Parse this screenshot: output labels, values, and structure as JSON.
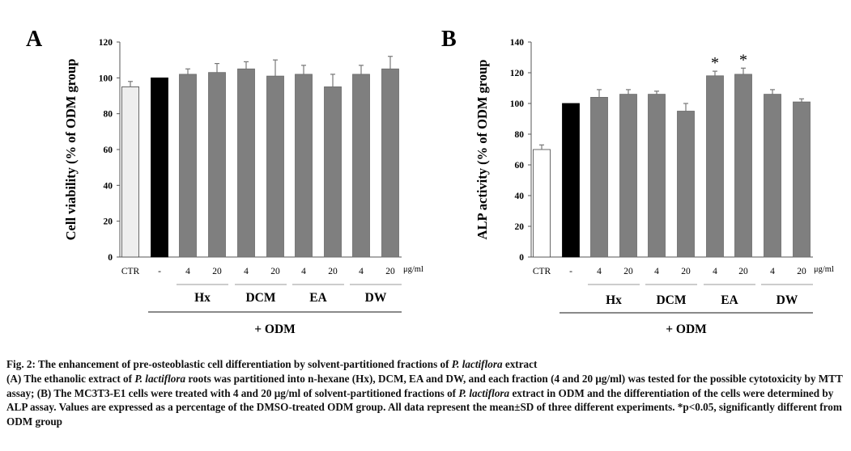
{
  "chart_data": [
    {
      "type": "bar",
      "panel_label": "A",
      "ylabel": "Cell viability (% of ODM group",
      "ylim": [
        0,
        120
      ],
      "yticks": [
        "0",
        "20",
        "40",
        "60",
        "80",
        "100",
        "120"
      ],
      "categories": [
        "CTR",
        "-",
        "4",
        "20",
        "4",
        "20",
        "4",
        "20",
        "4",
        "20"
      ],
      "values": [
        95,
        100,
        102,
        103,
        105,
        101,
        102,
        95,
        102,
        105
      ],
      "errors": [
        3,
        0,
        3,
        5,
        4,
        9,
        5,
        7,
        5,
        7
      ],
      "bar_colors": [
        "#eeeeee",
        "#000000",
        "#7f7f7f",
        "#7f7f7f",
        "#7f7f7f",
        "#7f7f7f",
        "#7f7f7f",
        "#7f7f7f",
        "#7f7f7f",
        "#7f7f7f"
      ],
      "unit_label": "μg/ml",
      "groups": [
        "Hx",
        "DCM",
        "EA",
        "DW"
      ],
      "treatment_label": "+ ODM",
      "significance": [
        "",
        "",
        "",
        "",
        "",
        "",
        "",
        "",
        "",
        ""
      ]
    },
    {
      "type": "bar",
      "panel_label": "B",
      "ylabel": "ALP activity (% of ODM group",
      "ylim": [
        0,
        140
      ],
      "yticks": [
        "0",
        "20",
        "40",
        "60",
        "80",
        "100",
        "120",
        "140"
      ],
      "categories": [
        "CTR",
        "-",
        "4",
        "20",
        "4",
        "20",
        "4",
        "20",
        "4",
        "20"
      ],
      "values": [
        70,
        100,
        104,
        106,
        106,
        95,
        118,
        119,
        106,
        101
      ],
      "errors": [
        3,
        0,
        5,
        3,
        2,
        5,
        3,
        4,
        3,
        2
      ],
      "bar_colors": [
        "#ffffff",
        "#000000",
        "#7f7f7f",
        "#7f7f7f",
        "#7f7f7f",
        "#7f7f7f",
        "#7f7f7f",
        "#7f7f7f",
        "#7f7f7f",
        "#7f7f7f"
      ],
      "unit_label": "μg/ml",
      "groups": [
        "Hx",
        "DCM",
        "EA",
        "DW"
      ],
      "treatment_label": "+ ODM",
      "significance": [
        "",
        "",
        "",
        "",
        "",
        "",
        "*",
        "*",
        "",
        ""
      ]
    }
  ],
  "caption": {
    "title_prefix": "Fig. 2: The enhancement of pre-osteoblastic cell differentiation by solvent-partitioned fractions of ",
    "title_species": "P. lactiflora",
    "title_suffix": " extract",
    "body_1": "(A) The ethanolic extract of ",
    "body_species_1": "P. lactiflora",
    "body_2": " roots was partitioned into n-hexane (Hx), DCM, EA and DW, and each fraction (4 and 20 μg/ml) was tested for the possible cytotoxicity by MTT assay; (B) The MC3T3-E1 cells were treated with 4 and 20 μg/ml of solvent-partitioned fractions of ",
    "body_species_2": "P. lactiflora",
    "body_3": " extract in ODM and the differentiation of the cells were determined by ALP assay. Values are expressed as a percentage of the DMSO-treated ODM group. All data represent the mean±SD of three different experiments. *p<0.05, significantly different from ODM group"
  }
}
